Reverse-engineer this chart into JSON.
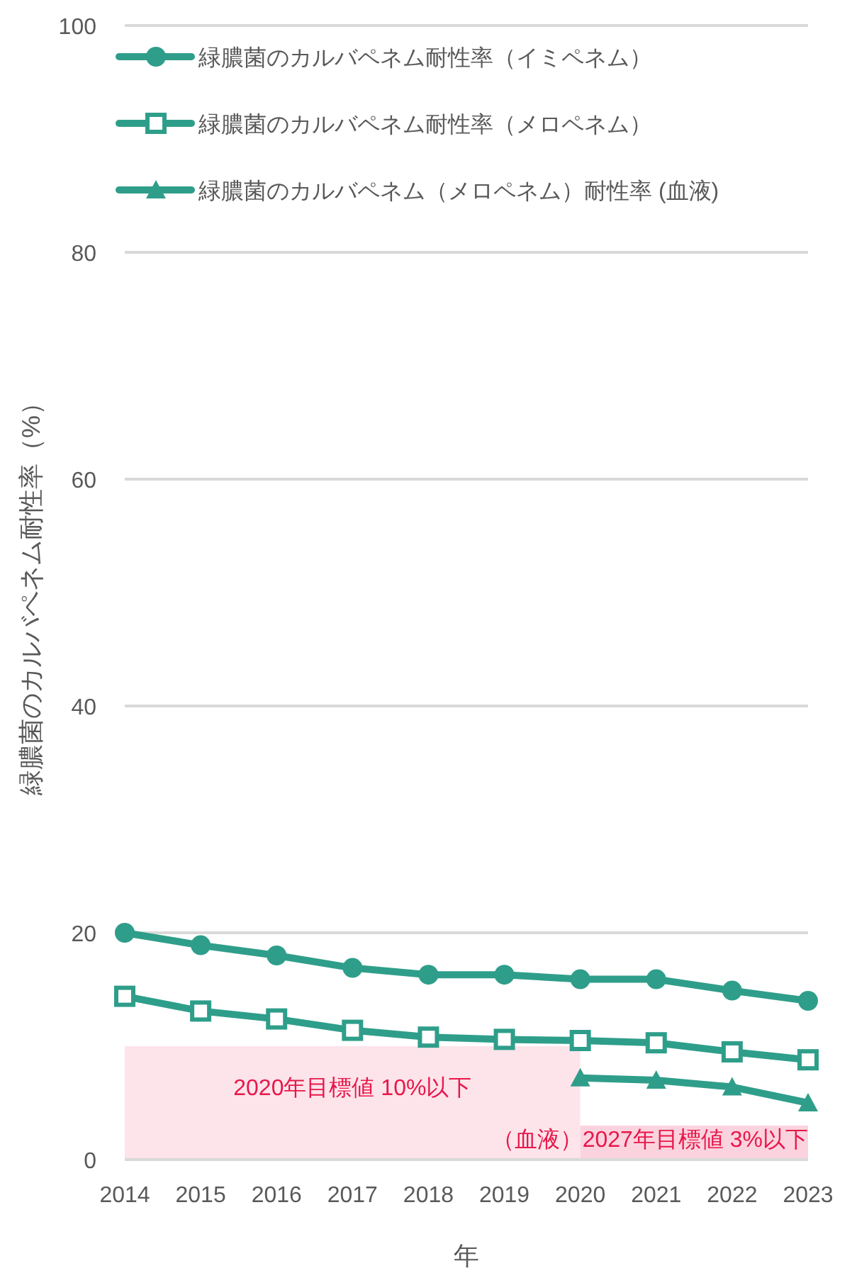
{
  "chart_data": {
    "type": "line",
    "categories": [
      "2014",
      "2015",
      "2016",
      "2017",
      "2018",
      "2019",
      "2020",
      "2021",
      "2022",
      "2023"
    ],
    "xlabel": "年",
    "ylabel": "緑膿菌のカルバペネム耐性率（%）",
    "ylim": [
      0,
      100
    ],
    "yticks": [
      0,
      20,
      40,
      60,
      80,
      100
    ],
    "grid": "y",
    "legend": "top left",
    "line_style": "solid",
    "series": [
      {
        "name": "緑膿菌のカルバペネム耐性率（イミペネム）",
        "color": "#2e9e8a",
        "marker": "circle",
        "values": [
          20.0,
          18.9,
          18.0,
          16.9,
          16.3,
          16.3,
          15.9,
          15.9,
          14.9,
          14.0
        ]
      },
      {
        "name": "緑膿菌のカルバペネム耐性率（メロペネム）",
        "color": "#2e9e8a",
        "marker": "square",
        "values": [
          14.4,
          13.1,
          12.4,
          11.4,
          10.8,
          10.6,
          10.5,
          10.3,
          9.5,
          8.8
        ]
      },
      {
        "name": "緑膿菌のカルバペネム（メロペネム）耐性率 (血液)",
        "color": "#2e9e8a",
        "marker": "triangle",
        "values": [
          null,
          null,
          null,
          null,
          null,
          null,
          7.2,
          7.0,
          6.4,
          5.0
        ]
      }
    ],
    "bands": [
      {
        "axis": "y",
        "from": 0,
        "to": 10,
        "label": "2020年目標値 10%以下",
        "color": "#fce4ea"
      },
      {
        "axis": "y",
        "from": 0,
        "to": 3,
        "label": "（血液）2027年目標値 3%以下",
        "color": "#fbd3de"
      }
    ]
  }
}
